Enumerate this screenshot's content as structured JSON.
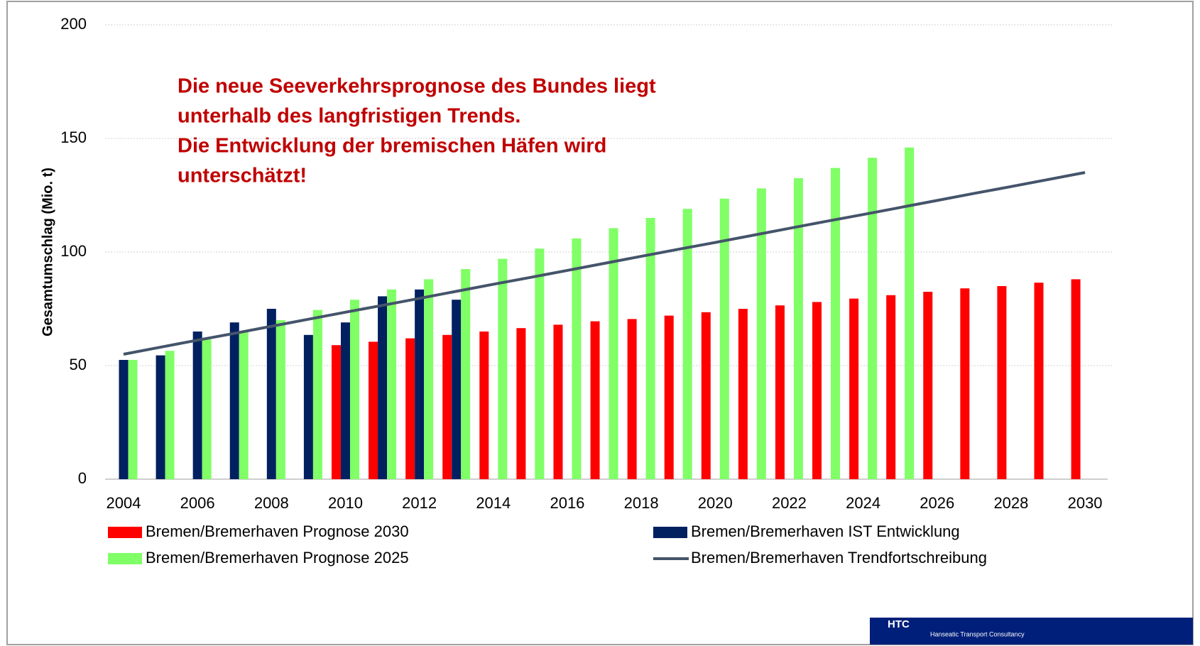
{
  "chart_data": {
    "type": "bar",
    "annotation": [
      "Die neue Seeverkehrsprognose des Bundes liegt",
      "unterhalb des langfristigen Trends.",
      "Die Entwicklung der bremischen Häfen wird",
      "unterschätzt!"
    ],
    "y_label": "Gesamtumschlag (Mio. t)",
    "categories": [
      "2004",
      null,
      "2006",
      null,
      "2008",
      null,
      "2010",
      null,
      "2012",
      null,
      "2014",
      null,
      "2016",
      null,
      "2018",
      null,
      "2020",
      null,
      "2022",
      null,
      "2024",
      null,
      "2026",
      null,
      "2028",
      null,
      "2030"
    ],
    "series": [
      {
        "name": "Bremen/Bremerhaven Prognose 2030",
        "type": "bar",
        "color": "#ff0000",
        "values": [
          null,
          null,
          null,
          null,
          null,
          null,
          59,
          60.5,
          62,
          63.5,
          65,
          66.5,
          68,
          69.5,
          70.5,
          72,
          73.5,
          75,
          76.5,
          78,
          79.5,
          81,
          82.5,
          84,
          85,
          86.5,
          88
        ]
      },
      {
        "name": "Bremen/Bremerhaven IST Entwicklung",
        "type": "bar",
        "color": "#002060",
        "values": [
          52.5,
          54.5,
          65,
          69,
          75,
          63.5,
          69,
          80.5,
          83.5,
          79,
          null,
          null,
          null,
          null,
          null,
          null,
          null,
          null,
          null,
          null,
          null,
          null,
          null,
          null,
          null,
          null,
          null
        ]
      },
      {
        "name": "Bremen/Bremerhaven Prognose 2025",
        "type": "bar",
        "color": "#80ff66",
        "values": [
          52.5,
          56.5,
          61.5,
          65,
          70,
          74.5,
          79,
          83.5,
          88,
          92.5,
          97,
          101.5,
          106,
          110.5,
          115,
          119,
          123.5,
          128,
          132.5,
          137,
          141.5,
          146,
          null,
          null,
          null,
          null,
          null
        ]
      },
      {
        "name": "Bremen/Bremerhaven Trendfortschreibung",
        "type": "line",
        "color": "#44546a",
        "values": [
          55,
          58.1,
          61.2,
          64.2,
          67.3,
          70.4,
          73.5,
          76.5,
          79.6,
          82.7,
          85.8,
          88.8,
          91.9,
          95,
          98.1,
          101.2,
          104.2,
          107.3,
          110.4,
          113.5,
          116.5,
          119.6,
          122.7,
          125.8,
          128.8,
          131.9,
          135
        ]
      }
    ],
    "ylim": [
      0,
      200
    ],
    "yticks": [
      0,
      50,
      100,
      150,
      200
    ],
    "grid": true,
    "logo": {
      "title": "HTC",
      "subtitle": "Hanseatic Transport Consultancy"
    }
  }
}
